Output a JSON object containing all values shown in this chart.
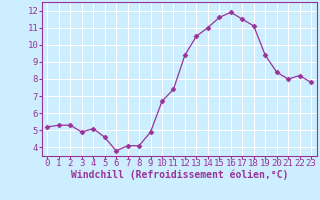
{
  "x": [
    0,
    1,
    2,
    3,
    4,
    5,
    6,
    7,
    8,
    9,
    10,
    11,
    12,
    13,
    14,
    15,
    16,
    17,
    18,
    19,
    20,
    21,
    22,
    23
  ],
  "y": [
    5.2,
    5.3,
    5.3,
    4.9,
    5.1,
    4.6,
    3.8,
    4.1,
    4.1,
    4.9,
    6.7,
    7.4,
    9.4,
    10.5,
    11.0,
    11.6,
    11.9,
    11.5,
    11.1,
    9.4,
    8.4,
    8.0,
    8.2,
    7.8
  ],
  "line_color": "#993399",
  "marker": "D",
  "marker_size": 2.5,
  "bg_color": "#cceeff",
  "grid_color": "#ffffff",
  "xlabel": "Windchill (Refroidissement éolien,°C)",
  "ylabel": "",
  "xlim": [
    -0.5,
    23.5
  ],
  "ylim": [
    3.5,
    12.5
  ],
  "yticks": [
    4,
    5,
    6,
    7,
    8,
    9,
    10,
    11,
    12
  ],
  "xticks": [
    0,
    1,
    2,
    3,
    4,
    5,
    6,
    7,
    8,
    9,
    10,
    11,
    12,
    13,
    14,
    15,
    16,
    17,
    18,
    19,
    20,
    21,
    22,
    23
  ],
  "tick_color": "#993399",
  "label_color": "#993399",
  "axis_color": "#993399",
  "font_size": 6.5,
  "xlabel_fontsize": 7.0
}
